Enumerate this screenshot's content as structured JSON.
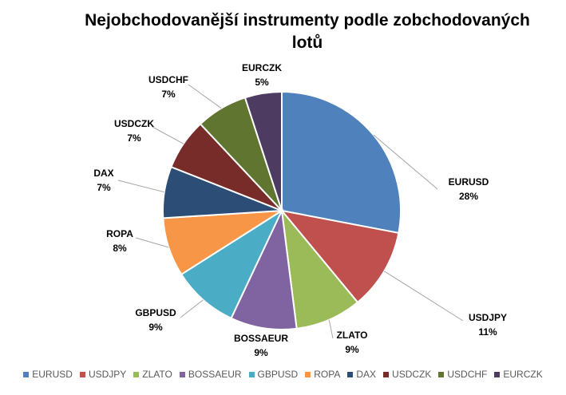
{
  "chart_data": {
    "type": "pie",
    "title": "Nejobchodovanější instrumenty podle zobchodovaných lotů",
    "slices": [
      {
        "label": "EURUSD",
        "value": 28,
        "value_label": "28%",
        "color": "#4F81BD"
      },
      {
        "label": "USDJPY",
        "value": 11,
        "value_label": "11%",
        "color": "#C0504D"
      },
      {
        "label": "ZLATO",
        "value": 9,
        "value_label": "9%",
        "color": "#9BBB59"
      },
      {
        "label": "BOSSAEUR",
        "value": 9,
        "value_label": "9%",
        "color": "#8064A2"
      },
      {
        "label": "GBPUSD",
        "value": 9,
        "value_label": "9%",
        "color": "#4BACC6"
      },
      {
        "label": "ROPA",
        "value": 8,
        "value_label": "8%",
        "color": "#F79646"
      },
      {
        "label": "DAX",
        "value": 7,
        "value_label": "7%",
        "color": "#2C4D75"
      },
      {
        "label": "USDCZK",
        "value": 7,
        "value_label": "7%",
        "color": "#772C2A"
      },
      {
        "label": "USDCHF",
        "value": 7,
        "value_label": "7%",
        "color": "#5F7530"
      },
      {
        "label": "EURCZK",
        "value": 5,
        "value_label": "5%",
        "color": "#4D3B62"
      }
    ],
    "legend_position": "bottom"
  }
}
